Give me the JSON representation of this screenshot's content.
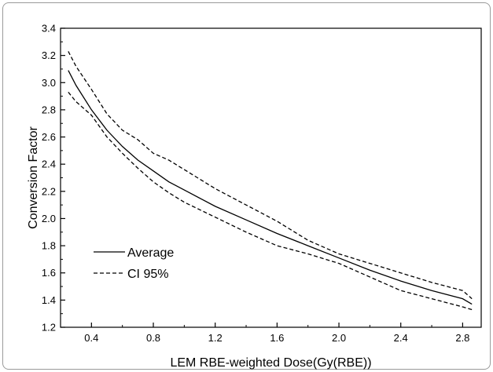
{
  "chart_data": {
    "type": "line",
    "title": "",
    "xlabel": "LEM RBE-weighted Dose(Gy(RBE))",
    "ylabel": "Conversion Factor",
    "xlim": [
      0.2,
      2.92
    ],
    "ylim": [
      1.2,
      3.4
    ],
    "xticks": [
      0.4,
      0.8,
      1.2,
      1.6,
      2.0,
      2.4,
      2.8
    ],
    "xtick_labels": [
      "0.4",
      "0.8",
      "1.2",
      "1.6",
      "2.0",
      "2.4",
      "2.8"
    ],
    "yticks": [
      1.2,
      1.4,
      1.6,
      1.8,
      2.0,
      2.2,
      2.4,
      2.6,
      2.8,
      3.0,
      3.2,
      3.4
    ],
    "ytick_labels": [
      "1.2",
      "1.4",
      "1.6",
      "1.8",
      "2.0",
      "2.2",
      "2.4",
      "2.6",
      "2.8",
      "3.0",
      "3.2",
      "3.4"
    ],
    "grid": false,
    "legend_position": "bottom-left",
    "series": [
      {
        "name": "Average",
        "style": "solid",
        "color": "#000000",
        "x": [
          0.25,
          0.3,
          0.4,
          0.5,
          0.6,
          0.7,
          0.8,
          0.9,
          1.0,
          1.2,
          1.4,
          1.6,
          1.8,
          2.0,
          2.2,
          2.4,
          2.6,
          2.8,
          2.86
        ],
        "y": [
          3.09,
          2.98,
          2.8,
          2.65,
          2.53,
          2.43,
          2.35,
          2.27,
          2.21,
          2.09,
          1.99,
          1.89,
          1.8,
          1.71,
          1.62,
          1.54,
          1.47,
          1.41,
          1.37
        ]
      },
      {
        "name": "CI 95%",
        "style": "dashed",
        "color": "#000000",
        "x": [
          0.25,
          0.3,
          0.4,
          0.5,
          0.6,
          0.7,
          0.8,
          0.9,
          1.0,
          1.2,
          1.4,
          1.6,
          1.8,
          2.0,
          2.2,
          2.4,
          2.6,
          2.8,
          2.86
        ],
        "y": [
          3.23,
          3.12,
          2.95,
          2.77,
          2.65,
          2.58,
          2.48,
          2.43,
          2.36,
          2.22,
          2.1,
          1.98,
          1.84,
          1.74,
          1.67,
          1.6,
          1.53,
          1.47,
          1.41
        ]
      },
      {
        "name": "",
        "style": "dashed",
        "color": "#000000",
        "x": [
          0.25,
          0.3,
          0.4,
          0.5,
          0.6,
          0.7,
          0.8,
          0.9,
          1.0,
          1.2,
          1.4,
          1.6,
          1.8,
          2.0,
          2.2,
          2.4,
          2.6,
          2.8,
          2.86
        ],
        "y": [
          2.93,
          2.86,
          2.76,
          2.6,
          2.48,
          2.37,
          2.27,
          2.19,
          2.12,
          2.01,
          1.9,
          1.8,
          1.74,
          1.67,
          1.57,
          1.47,
          1.41,
          1.35,
          1.33
        ]
      }
    ],
    "legend": [
      {
        "label": "Average",
        "style": "solid"
      },
      {
        "label": "CI 95%",
        "style": "dashed"
      }
    ]
  }
}
